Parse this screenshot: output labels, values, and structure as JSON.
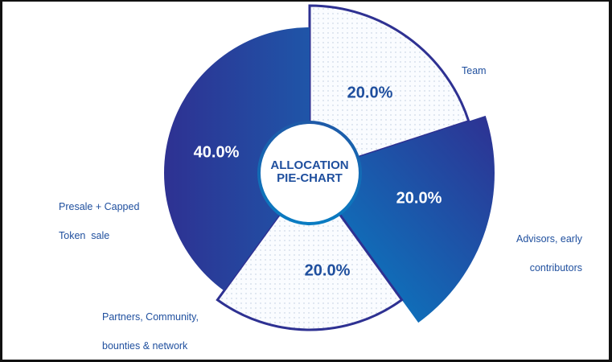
{
  "chart_data": {
    "type": "pie",
    "title": "ALLOCATION PIE-CHART",
    "title_lines": [
      "ALLOCATION",
      "PIE-CHART"
    ],
    "slices": [
      {
        "label": "Team",
        "value": 20.0,
        "value_label": "20.0%",
        "style": "dotted"
      },
      {
        "label": "Advisors, early contributors",
        "label_lines": [
          "Advisors, early",
          "contributors"
        ],
        "value": 20.0,
        "value_label": "20.0%",
        "style": "gradient"
      },
      {
        "label": "Partners, Community, bounties & network",
        "label_lines": [
          "Partners, Community,",
          "bounties & network"
        ],
        "value": 20.0,
        "value_label": "20.0%",
        "style": "dotted"
      },
      {
        "label": "Presale + Capped Token sale",
        "label_lines": [
          "Presale + Capped",
          "Token  sale"
        ],
        "value": 40.0,
        "value_label": "40.0%",
        "style": "gradient"
      }
    ]
  },
  "colors": {
    "navy": "#2e3192",
    "blue": "#1f4f9e",
    "light_blue": "#0a7cc2"
  }
}
